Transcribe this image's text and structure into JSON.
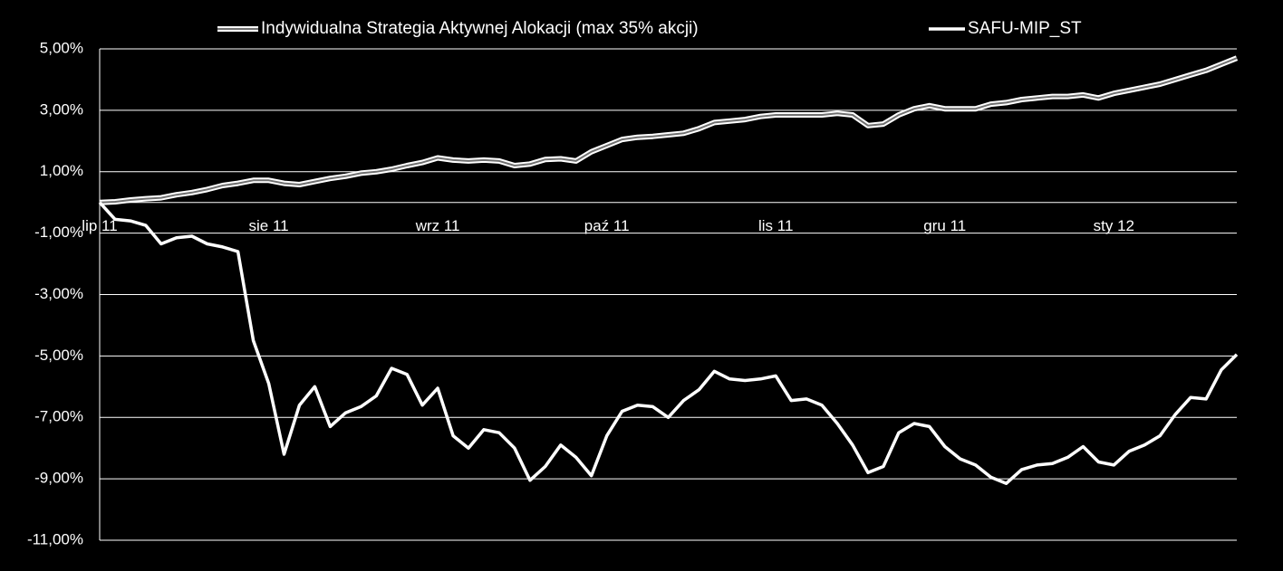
{
  "chart_data": {
    "type": "line",
    "categories": [
      "lip 11",
      null,
      null,
      null,
      null,
      null,
      null,
      null,
      null,
      null,
      null,
      "sie 11",
      null,
      null,
      null,
      null,
      null,
      null,
      null,
      null,
      null,
      null,
      "wrz 11",
      null,
      null,
      null,
      null,
      null,
      null,
      null,
      null,
      null,
      null,
      "paź 11",
      null,
      null,
      null,
      null,
      null,
      null,
      null,
      null,
      null,
      null,
      "lis 11",
      null,
      null,
      null,
      null,
      null,
      null,
      null,
      null,
      null,
      null,
      "gru 11",
      null,
      null,
      null,
      null,
      null,
      null,
      null,
      null,
      null,
      null,
      "sty 12",
      null,
      null,
      null,
      null,
      null,
      null,
      null,
      null
    ],
    "series": [
      {
        "name": "Indywidualna Strategia Aktywnej Alokacji (max 35% akcji)",
        "color": "#ffffff",
        "style": "double",
        "values": [
          0,
          0.02,
          0.08,
          0.12,
          0.15,
          0.25,
          0.32,
          0.42,
          0.55,
          0.62,
          0.72,
          0.72,
          0.62,
          0.58,
          0.68,
          0.78,
          0.85,
          0.95,
          1.0,
          1.08,
          1.2,
          1.3,
          1.45,
          1.38,
          1.35,
          1.38,
          1.35,
          1.2,
          1.25,
          1.4,
          1.42,
          1.35,
          1.65,
          1.85,
          2.05,
          2.12,
          2.15,
          2.2,
          2.25,
          2.4,
          2.6,
          2.65,
          2.7,
          2.8,
          2.85,
          2.85,
          2.85,
          2.85,
          2.9,
          2.85,
          2.5,
          2.55,
          2.85,
          3.05,
          3.15,
          3.05,
          3.05,
          3.05,
          3.2,
          3.25,
          3.35,
          3.4,
          3.45,
          3.45,
          3.5,
          3.4,
          3.55,
          3.65,
          3.75,
          3.85,
          4.0,
          4.15,
          4.3,
          4.5,
          4.7
        ]
      },
      {
        "name": "SAFU-MIP_ST",
        "color": "#ffffff",
        "style": "solid",
        "values": [
          0,
          -0.55,
          -0.6,
          -0.75,
          -1.35,
          -1.15,
          -1.1,
          -1.35,
          -1.45,
          -1.6,
          -4.5,
          -5.9,
          -8.2,
          -6.6,
          -6.0,
          -7.3,
          -6.85,
          -6.65,
          -6.3,
          -5.4,
          -5.6,
          -6.6,
          -6.05,
          -7.6,
          -8.0,
          -7.4,
          -7.5,
          -8.0,
          -9.05,
          -8.6,
          -7.9,
          -8.3,
          -8.9,
          -7.6,
          -6.8,
          -6.6,
          -6.65,
          -7.0,
          -6.45,
          -6.1,
          -5.5,
          -5.75,
          -5.8,
          -5.75,
          -5.65,
          -6.45,
          -6.4,
          -6.6,
          -7.2,
          -7.9,
          -8.8,
          -8.6,
          -7.5,
          -7.2,
          -7.3,
          -7.95,
          -8.35,
          -8.55,
          -8.95,
          -9.15,
          -8.7,
          -8.55,
          -8.5,
          -8.3,
          -7.95,
          -8.45,
          -8.55,
          -8.1,
          -7.9,
          -7.6,
          -6.9,
          -6.35,
          -6.4,
          -5.45,
          -4.95
        ]
      }
    ],
    "ylim": [
      -11,
      5
    ],
    "yticks": [
      {
        "value": -11,
        "label": "-11,00%"
      },
      {
        "value": -9,
        "label": "-9,00%"
      },
      {
        "value": -7,
        "label": "-7,00%"
      },
      {
        "value": -5,
        "label": "-5,00%"
      },
      {
        "value": -3,
        "label": "-3,00%"
      },
      {
        "value": -1,
        "label": "-1,00%"
      },
      {
        "value": 1,
        "label": "1,00%"
      },
      {
        "value": 3,
        "label": "3,00%"
      },
      {
        "value": 5,
        "label": "5,00%"
      }
    ],
    "grid": true,
    "legend": "top"
  }
}
